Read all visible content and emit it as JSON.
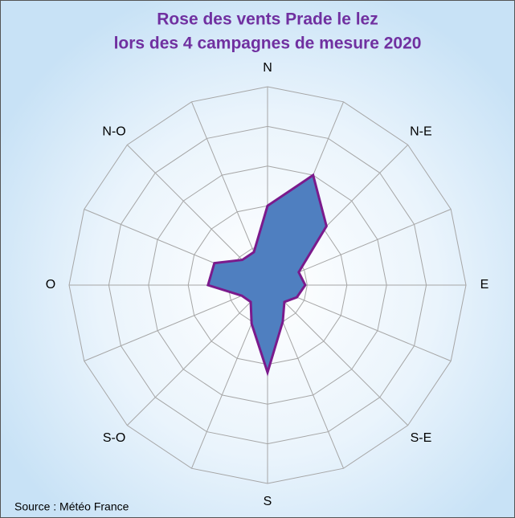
{
  "chart_data": {
    "type": "radar",
    "title": [
      "Rose des vents Prade le lez",
      "lors des 4 campagnes de mesure 2020"
    ],
    "categories": [
      "N",
      null,
      "N-E",
      null,
      "E",
      null,
      "S-E",
      null,
      "S",
      null,
      "S-O",
      null,
      "O",
      null,
      "N-O",
      null
    ],
    "values": [
      2.0,
      3.0,
      2.1,
      0.85,
      0.95,
      0.8,
      0.6,
      1.0,
      2.2,
      1.05,
      0.6,
      0.7,
      1.5,
      1.45,
      0.9,
      0.9
    ],
    "color": "#4f7fc0",
    "line_color": "#7b1a8c",
    "rlim": [
      0,
      5
    ],
    "rticks": [
      1,
      2,
      3,
      4,
      5
    ],
    "grid": true,
    "source": "Source : Météo France"
  }
}
